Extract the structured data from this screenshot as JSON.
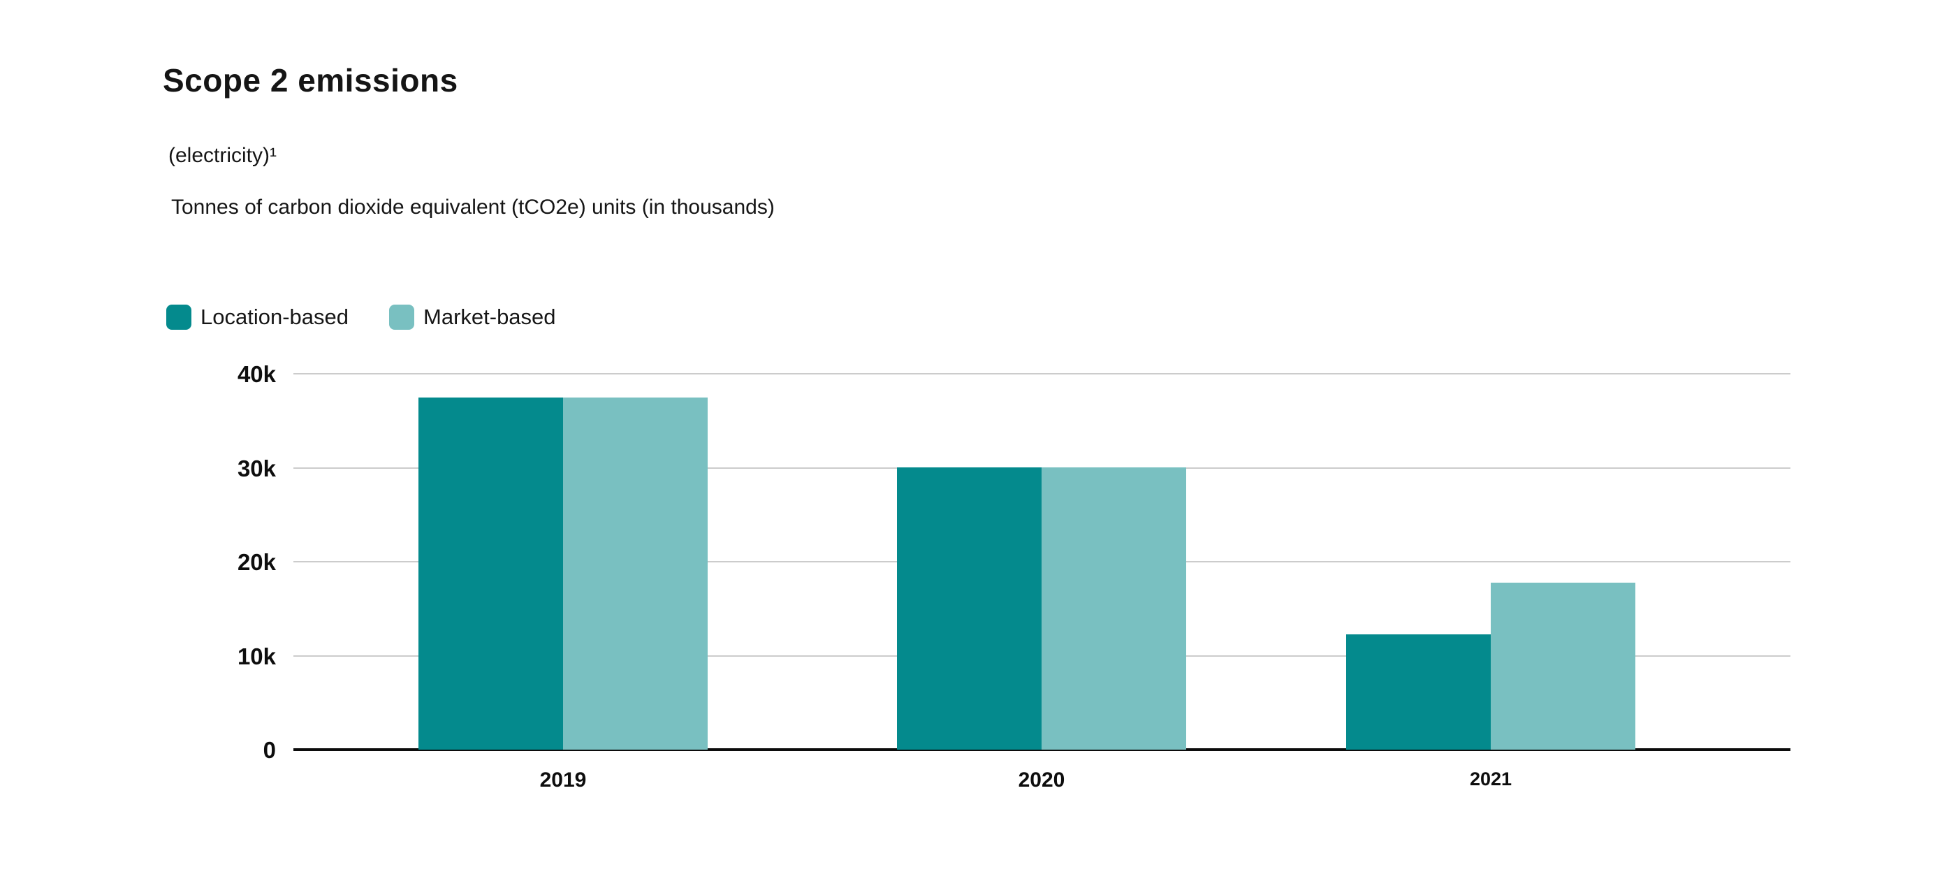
{
  "header": {
    "title": "Scope 2 emissions",
    "subtitle_line1": "(electricity)¹",
    "subtitle_line2": "Tonnes of carbon dioxide equivalent (tCO2e) units (in thousands)"
  },
  "legend": {
    "items": [
      {
        "label": "Location-based",
        "color": "#048a8d"
      },
      {
        "label": "Market-based",
        "color": "#79c0c1"
      }
    ]
  },
  "chart_data": {
    "type": "bar",
    "title": "Scope 2 emissions (electricity)",
    "ylabel": "Tonnes of carbon dioxide equivalent (tCO2e) units (in thousands)",
    "xlabel": "",
    "categories": [
      "2019",
      "2020",
      "2021"
    ],
    "series": [
      {
        "name": "Location-based",
        "color": "#048a8d",
        "values": [
          37.5,
          30.0,
          12.3
        ]
      },
      {
        "name": "Market-based",
        "color": "#79c0c1",
        "values": [
          37.5,
          30.0,
          17.8
        ]
      }
    ],
    "units_note": "values in thousands of tCO2e",
    "ylim": [
      0,
      40
    ],
    "yticks": [
      {
        "label": "40k",
        "value": 40
      },
      {
        "label": "30k",
        "value": 30
      },
      {
        "label": "20k",
        "value": 20
      },
      {
        "label": "10k",
        "value": 10
      },
      {
        "label": "0",
        "value": 0
      }
    ],
    "grid": true,
    "legend_position": "top-left",
    "colors": {
      "gridline": "#cccccc",
      "axis": "#0c0c0c",
      "text": "#111111"
    }
  }
}
